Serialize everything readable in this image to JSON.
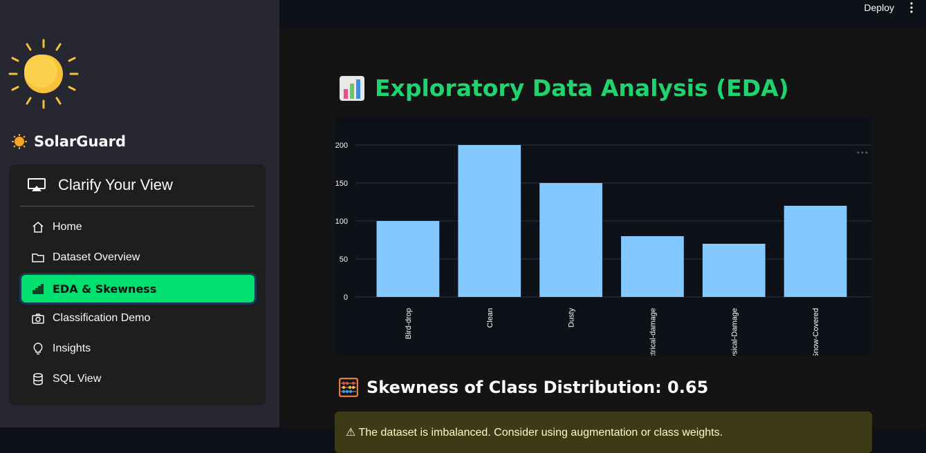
{
  "sidebar": {
    "brand": {
      "icon": "sun-emoji-icon",
      "name": "SolarGuard"
    },
    "menu": {
      "title": "Clarify Your View",
      "title_icon": "airplay-icon",
      "items": [
        {
          "label": "Home",
          "icon": "house-icon",
          "active": false
        },
        {
          "label": "Dataset Overview",
          "icon": "folder-icon",
          "active": false
        },
        {
          "label": "EDA & Skewness",
          "icon": "bar-chart-icon",
          "active": true
        },
        {
          "label": "Classification Demo",
          "icon": "camera-icon",
          "active": false
        },
        {
          "label": "Insights",
          "icon": "lightbulb-icon",
          "active": false
        },
        {
          "label": "SQL View",
          "icon": "database-icon",
          "active": false
        }
      ],
      "active_color": "#00e06e"
    }
  },
  "header": {
    "deploy_label": "Deploy",
    "menu_icon": "kebab-menu-icon"
  },
  "main": {
    "title": "Exploratory Data Analysis (EDA)",
    "title_icon": "bar-chart-emoji-icon",
    "title_color": "#21d36f",
    "section_title": "Skewness of Class Distribution: 0.65",
    "section_icon": "abacus-emoji-icon",
    "alert_text": "⚠ The dataset is imbalanced. Consider using augmentation or class weights."
  },
  "chart_data": {
    "type": "bar",
    "categories": [
      "Bird-drop",
      "Clean",
      "Dusty",
      "Electrical-damage",
      "Physical-Damage",
      "Snow-Covered"
    ],
    "values": [
      100,
      200,
      150,
      80,
      70,
      120
    ],
    "yticks": [
      0,
      50,
      100,
      150,
      200
    ],
    "ylim": [
      0,
      200
    ],
    "bar_color": "#83c9ff",
    "grid": true,
    "legend": "none"
  }
}
